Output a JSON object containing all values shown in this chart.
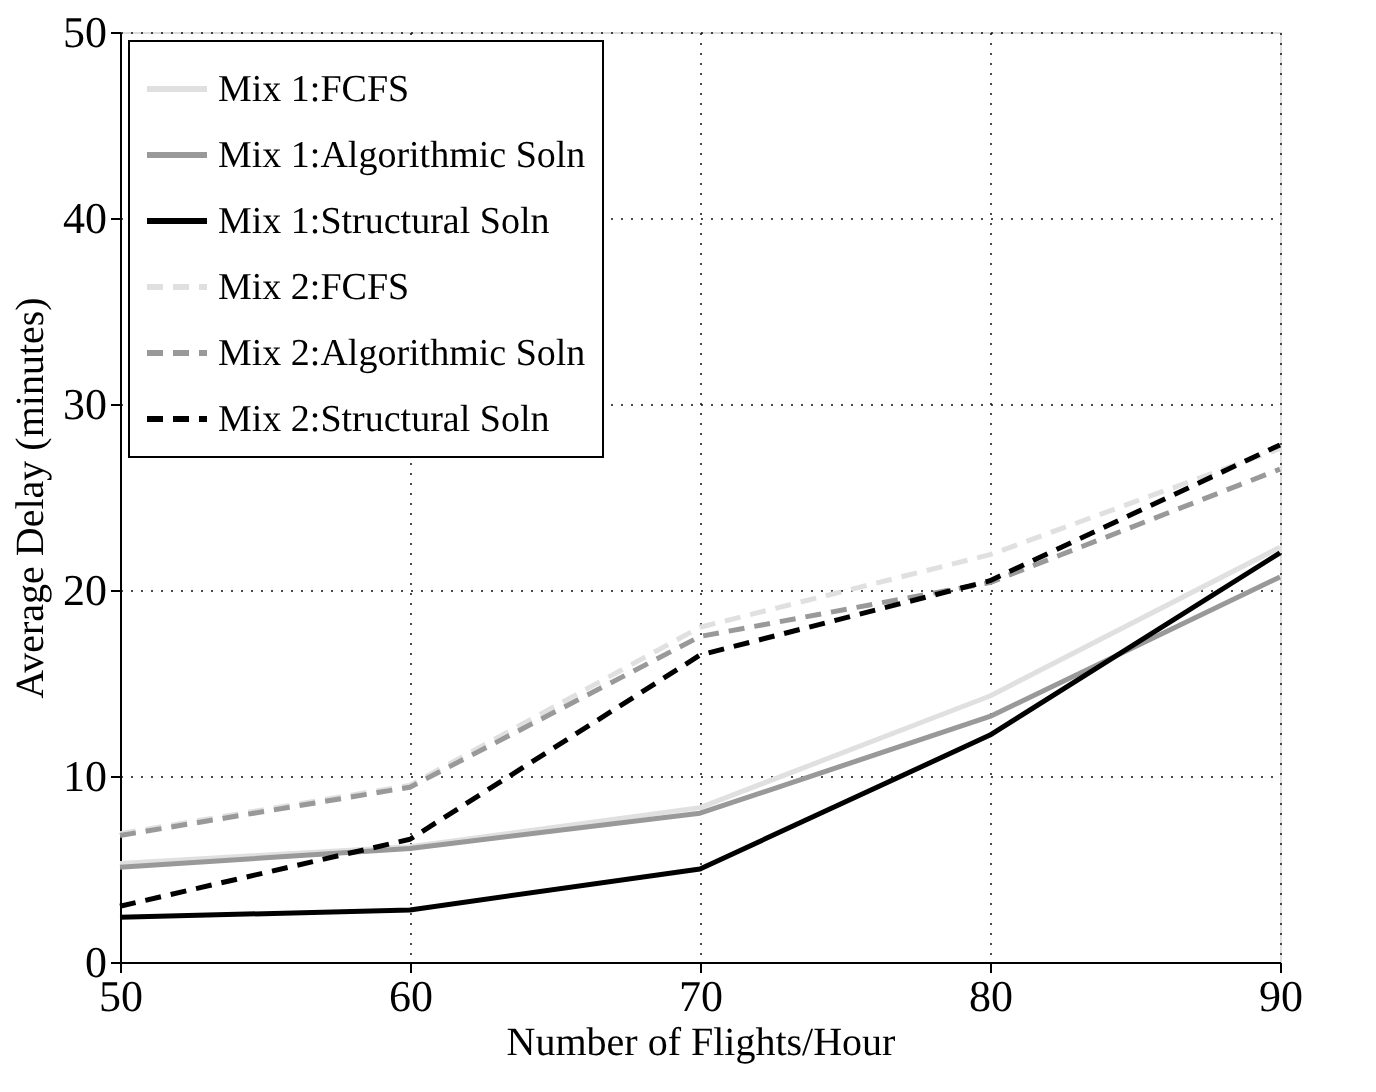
{
  "chart_data": {
    "type": "line",
    "xlabel": "Number of Flights/Hour",
    "ylabel": "Average Delay (minutes)",
    "x": [
      50,
      60,
      70,
      80,
      90
    ],
    "series": [
      {
        "name": "Mix 1:FCFS",
        "color": "#e0e0e0",
        "line_style": "solid",
        "values": [
          5.3,
          6.2,
          8.3,
          14.3,
          22.3
        ]
      },
      {
        "name": "Mix 1:Algorithmic Soln",
        "color": "#999999",
        "line_style": "solid",
        "values": [
          5.1,
          6.1,
          8.0,
          13.2,
          20.7
        ]
      },
      {
        "name": "Mix 1:Structural Soln",
        "color": "#000000",
        "line_style": "solid",
        "values": [
          2.4,
          2.8,
          5.0,
          12.2,
          22.0
        ]
      },
      {
        "name": "Mix 2:FCFS",
        "color": "#e0e0e0",
        "line_style": "dashed",
        "values": [
          6.9,
          9.5,
          18.0,
          21.9,
          27.6
        ]
      },
      {
        "name": "Mix 2:Algorithmic Soln",
        "color": "#999999",
        "line_style": "dashed",
        "values": [
          6.8,
          9.4,
          17.5,
          20.4,
          26.5
        ]
      },
      {
        "name": "Mix 2:Structural Soln",
        "color": "#000000",
        "line_style": "dashed",
        "values": [
          3.0,
          6.6,
          16.5,
          20.5,
          27.8
        ]
      }
    ],
    "xlim": [
      50,
      90
    ],
    "xticks": [
      50,
      60,
      70,
      80,
      90
    ],
    "ylim": [
      0,
      50
    ],
    "yticks": [
      0,
      10,
      20,
      30,
      40,
      50
    ],
    "grid": true,
    "legend": "top left",
    "marker": "none"
  }
}
